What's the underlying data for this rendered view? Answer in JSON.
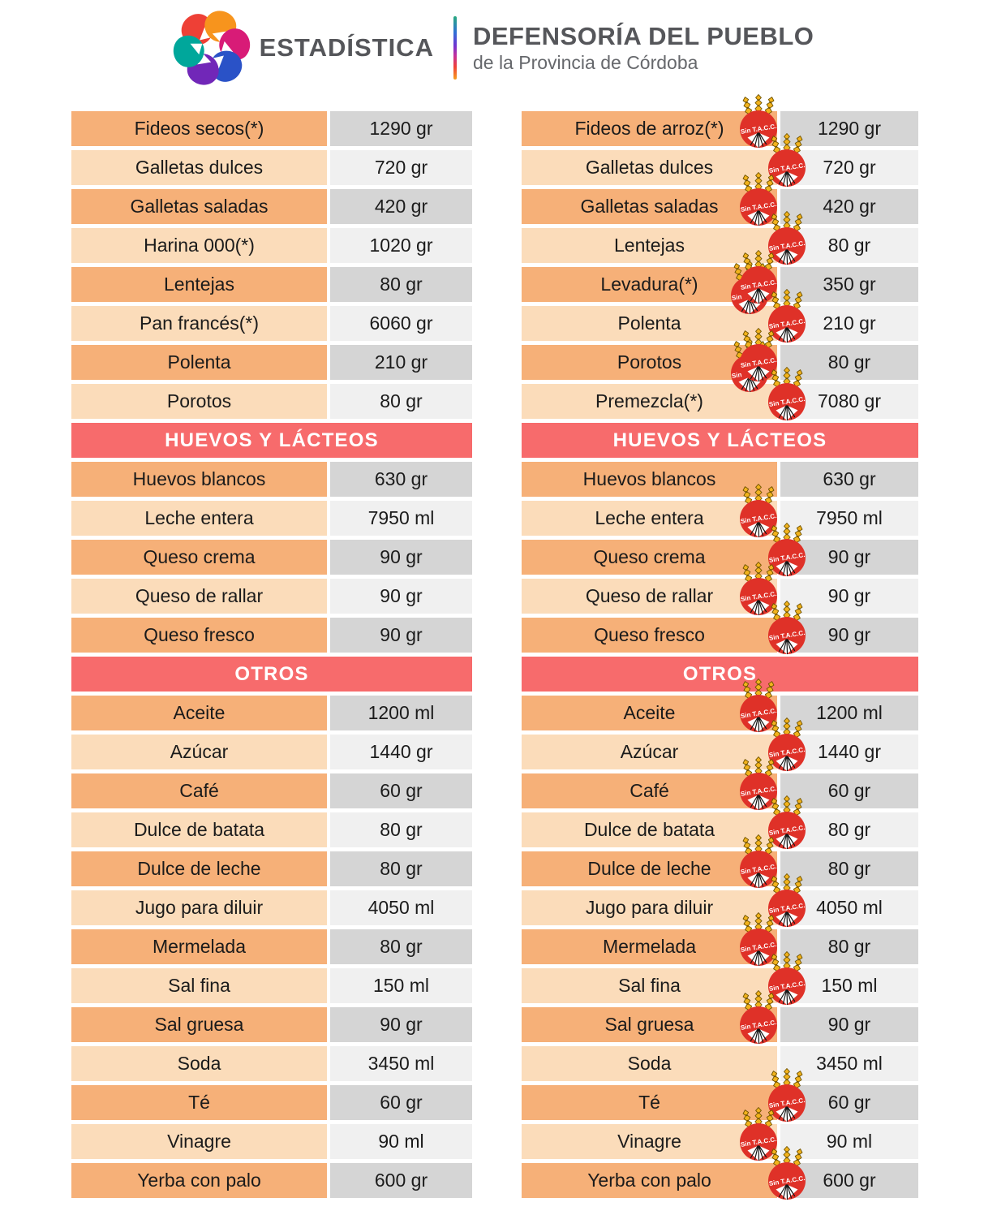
{
  "header": {
    "brand": "ESTADÍSTICA",
    "org_title": "DEFENSORÍA DEL PUEBLO",
    "org_subtitle": "de la Provincia de Córdoba"
  },
  "badge_label": "Sin T.A.C.C.",
  "colors": {
    "row_name_dark": "#f6b078",
    "row_name_light": "#fbdcba",
    "row_value_dark": "#d5d5d5",
    "row_value_light": "#f0f0f0",
    "section_header_bg": "#f76b6c",
    "section_header_text": "#ffffff",
    "badge_red": "#df3128",
    "wheat_yellow": "#f2b31d",
    "text": "#1b1b1b"
  },
  "left_table": {
    "sections": [
      {
        "title": null,
        "rows": [
          {
            "name": "Fideos secos(*)",
            "value": "1290 gr",
            "badge_pos": null
          },
          {
            "name": "Galletas dulces",
            "value": "720 gr",
            "badge_pos": null
          },
          {
            "name": "Galletas saladas",
            "value": "420 gr",
            "badge_pos": null
          },
          {
            "name": "Harina 000(*)",
            "value": "1020 gr",
            "badge_pos": null
          },
          {
            "name": "Lentejas",
            "value": "80 gr",
            "badge_pos": null
          },
          {
            "name": "Pan francés(*)",
            "value": "6060 gr",
            "badge_pos": null
          },
          {
            "name": "Polenta",
            "value": "210 gr",
            "badge_pos": null
          },
          {
            "name": "Porotos",
            "value": "80 gr",
            "badge_pos": null
          }
        ]
      },
      {
        "title": "HUEVOS Y LÁCTEOS",
        "rows": [
          {
            "name": "Huevos blancos",
            "value": "630 gr",
            "badge_pos": null
          },
          {
            "name": "Leche entera",
            "value": "7950 ml",
            "badge_pos": null
          },
          {
            "name": "Queso crema",
            "value": "90 gr",
            "badge_pos": null
          },
          {
            "name": "Queso de rallar",
            "value": "90 gr",
            "badge_pos": null
          },
          {
            "name": "Queso fresco",
            "value": "90 gr",
            "badge_pos": null
          }
        ]
      },
      {
        "title": "OTROS",
        "rows": [
          {
            "name": "Aceite",
            "value": "1200 ml",
            "badge_pos": null
          },
          {
            "name": "Azúcar",
            "value": "1440 gr",
            "badge_pos": null
          },
          {
            "name": "Café",
            "value": "60 gr",
            "badge_pos": null
          },
          {
            "name": "Dulce de batata",
            "value": "80 gr",
            "badge_pos": null
          },
          {
            "name": "Dulce de leche",
            "value": "80 gr",
            "badge_pos": null
          },
          {
            "name": "Jugo para diluir",
            "value": "4050 ml",
            "badge_pos": null
          },
          {
            "name": "Mermelada",
            "value": "80 gr",
            "badge_pos": null
          },
          {
            "name": "Sal fina",
            "value": "150 ml",
            "badge_pos": null
          },
          {
            "name": "Sal gruesa",
            "value": "90 gr",
            "badge_pos": null
          },
          {
            "name": "Soda",
            "value": "3450 ml",
            "badge_pos": null
          },
          {
            "name": "Té",
            "value": "60 gr",
            "badge_pos": null
          },
          {
            "name": "Vinagre",
            "value": "90 ml",
            "badge_pos": null
          },
          {
            "name": "Yerba con palo",
            "value": "600 gr",
            "badge_pos": null
          }
        ]
      }
    ]
  },
  "right_table": {
    "sections": [
      {
        "title": null,
        "rows": [
          {
            "name": "Fideos de arroz(*)",
            "value": "1290 gr",
            "badge_pos": "left"
          },
          {
            "name": "Galletas dulces",
            "value": "720 gr",
            "badge_pos": "right"
          },
          {
            "name": "Galletas saladas",
            "value": "420 gr",
            "badge_pos": "left"
          },
          {
            "name": "Lentejas",
            "value": "80 gr",
            "badge_pos": "right"
          },
          {
            "name": "Levadura(*)",
            "value": "350 gr",
            "badge_pos": "left",
            "badge_double": true
          },
          {
            "name": "Polenta",
            "value": "210 gr",
            "badge_pos": "right"
          },
          {
            "name": "Porotos",
            "value": "80 gr",
            "badge_pos": "left",
            "badge_double": true
          },
          {
            "name": "Premezcla(*)",
            "value": "7080 gr",
            "badge_pos": "right"
          }
        ]
      },
      {
        "title": "HUEVOS Y LÁCTEOS",
        "rows": [
          {
            "name": "Huevos blancos",
            "value": "630 gr",
            "badge_pos": null
          },
          {
            "name": "Leche entera",
            "value": "7950 ml",
            "badge_pos": "left"
          },
          {
            "name": "Queso crema",
            "value": "90 gr",
            "badge_pos": "right"
          },
          {
            "name": "Queso de rallar",
            "value": "90 gr",
            "badge_pos": "left"
          },
          {
            "name": "Queso fresco",
            "value": "90 gr",
            "badge_pos": "right"
          }
        ]
      },
      {
        "title": "OTROS",
        "rows": [
          {
            "name": "Aceite",
            "value": "1200 ml",
            "badge_pos": "left"
          },
          {
            "name": "Azúcar",
            "value": "1440 gr",
            "badge_pos": "right"
          },
          {
            "name": "Café",
            "value": "60 gr",
            "badge_pos": "left"
          },
          {
            "name": "Dulce de batata",
            "value": "80 gr",
            "badge_pos": "right"
          },
          {
            "name": "Dulce de leche",
            "value": "80 gr",
            "badge_pos": "left"
          },
          {
            "name": "Jugo para diluir",
            "value": "4050 ml",
            "badge_pos": "right"
          },
          {
            "name": "Mermelada",
            "value": "80 gr",
            "badge_pos": "left"
          },
          {
            "name": "Sal fina",
            "value": "150 ml",
            "badge_pos": "right"
          },
          {
            "name": "Sal gruesa",
            "value": "90 gr",
            "badge_pos": "left"
          },
          {
            "name": "Soda",
            "value": "3450 ml",
            "badge_pos": null
          },
          {
            "name": "Té",
            "value": "60 gr",
            "badge_pos": "right"
          },
          {
            "name": "Vinagre",
            "value": "90 ml",
            "badge_pos": "left"
          },
          {
            "name": "Yerba con palo",
            "value": "600 gr",
            "badge_pos": "right"
          }
        ]
      }
    ]
  }
}
